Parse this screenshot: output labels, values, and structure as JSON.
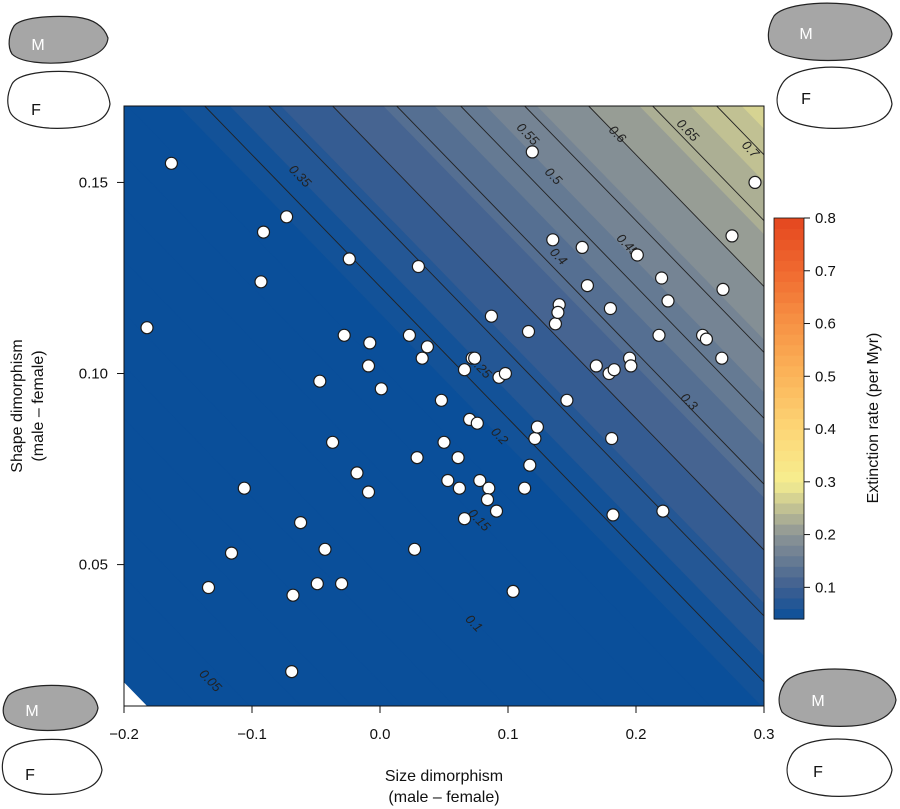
{
  "chart_data": {
    "type": "scatter",
    "title": "",
    "xlabel_line1": "Size dimorphism",
    "xlabel_line2": "(male – female)",
    "ylabel_line1": "Shape dimorphism",
    "ylabel_line2": "(male – female)",
    "xlim": [
      -0.2,
      0.3
    ],
    "ylim": [
      0.013,
      0.17
    ],
    "x_ticks": [
      {
        "value": -0.2,
        "label": "−0.2"
      },
      {
        "value": -0.1,
        "label": "−0.1"
      },
      {
        "value": 0.0,
        "label": "0.0"
      },
      {
        "value": 0.1,
        "label": "0.1"
      },
      {
        "value": 0.2,
        "label": "0.2"
      },
      {
        "value": 0.3,
        "label": "0.3"
      }
    ],
    "y_ticks": [
      {
        "value": 0.05,
        "label": "0.05"
      },
      {
        "value": 0.1,
        "label": "0.10"
      },
      {
        "value": 0.15,
        "label": "0.15"
      }
    ],
    "colorbar": {
      "label": "Extinction rate (per Myr)",
      "range": [
        0.04,
        0.8
      ],
      "ticks": [
        {
          "value": 0.1,
          "label": "0.1"
        },
        {
          "value": 0.2,
          "label": "0.2"
        },
        {
          "value": 0.3,
          "label": "0.3"
        },
        {
          "value": 0.4,
          "label": "0.4"
        },
        {
          "value": 0.5,
          "label": "0.5"
        },
        {
          "value": 0.6,
          "label": "0.6"
        },
        {
          "value": 0.7,
          "label": "0.7"
        },
        {
          "value": 0.8,
          "label": "0.8"
        }
      ],
      "stops": [
        {
          "value": 0.04,
          "color": "#0a4f9a"
        },
        {
          "value": 0.1,
          "color": "#3e5f90"
        },
        {
          "value": 0.2,
          "color": "#8c9496"
        },
        {
          "value": 0.3,
          "color": "#f6ee90"
        },
        {
          "value": 0.4,
          "color": "#fdd676"
        },
        {
          "value": 0.5,
          "color": "#fbb55a"
        },
        {
          "value": 0.6,
          "color": "#f79345"
        },
        {
          "value": 0.7,
          "color": "#f06a30"
        },
        {
          "value": 0.8,
          "color": "#e4461f"
        }
      ]
    },
    "contour_model": {
      "a": 0.5,
      "b": 1.45,
      "c": 0.128
    },
    "contour_levels": [
      0.05,
      0.075,
      0.1,
      0.125,
      0.15,
      0.175,
      0.2,
      0.225,
      0.25,
      0.275,
      0.3,
      0.325,
      0.35,
      0.375,
      0.4,
      0.45,
      0.5,
      0.55,
      0.6,
      0.65,
      0.7
    ],
    "contour_labels": [
      {
        "text": "0.05",
        "x": -0.133,
        "y": 0.0195
      },
      {
        "text": "0.1",
        "x": 0.073,
        "y": 0.0345
      },
      {
        "text": "0.15",
        "x": 0.077,
        "y": 0.0615
      },
      {
        "text": "0.2",
        "x": 0.093,
        "y": 0.0835
      },
      {
        "text": "0.25",
        "x": 0.078,
        "y": 0.1015
      },
      {
        "text": "0.3",
        "x": 0.241,
        "y": 0.0925
      },
      {
        "text": "0.35",
        "x": -0.063,
        "y": 0.1515
      },
      {
        "text": "0.4",
        "x": 0.139,
        "y": 0.1305
      },
      {
        "text": "0.45",
        "x": 0.193,
        "y": 0.1335
      },
      {
        "text": "0.5",
        "x": 0.135,
        "y": 0.1515
      },
      {
        "text": "0.55",
        "x": 0.115,
        "y": 0.1625
      },
      {
        "text": "0.6",
        "x": 0.185,
        "y": 0.1625
      },
      {
        "text": "0.65",
        "x": 0.24,
        "y": 0.1635
      },
      {
        "text": "0.7",
        "x": 0.289,
        "y": 0.1585
      }
    ],
    "series": [
      {
        "name": "Species",
        "x": [
          -0.163,
          -0.182,
          -0.091,
          -0.093,
          -0.073,
          -0.024,
          -0.028,
          -0.008,
          -0.009,
          -0.047,
          -0.037,
          -0.018,
          0.001,
          -0.009,
          -0.106,
          -0.116,
          -0.062,
          -0.043,
          -0.134,
          -0.049,
          -0.068,
          -0.03,
          -0.069,
          0.03,
          0.023,
          0.037,
          0.033,
          0.029,
          0.027,
          0.048,
          0.05,
          0.053,
          0.061,
          0.062,
          0.066,
          0.066,
          0.072,
          0.07,
          0.076,
          0.074,
          0.078,
          0.085,
          0.084,
          0.091,
          0.087,
          0.093,
          0.098,
          0.104,
          0.113,
          0.116,
          0.117,
          0.119,
          0.121,
          0.123,
          0.135,
          0.14,
          0.137,
          0.139,
          0.146,
          0.158,
          0.162,
          0.169,
          0.179,
          0.181,
          0.18,
          0.183,
          0.182,
          0.195,
          0.196,
          0.201,
          0.22,
          0.221,
          0.225,
          0.218,
          0.252,
          0.255,
          0.268,
          0.267,
          0.275,
          0.293
        ],
        "y": [
          0.155,
          0.112,
          0.137,
          0.124,
          0.141,
          0.13,
          0.11,
          0.108,
          0.102,
          0.098,
          0.082,
          0.074,
          0.096,
          0.069,
          0.07,
          0.053,
          0.061,
          0.054,
          0.044,
          0.045,
          0.042,
          0.045,
          0.022,
          0.128,
          0.11,
          0.107,
          0.104,
          0.078,
          0.054,
          0.093,
          0.082,
          0.072,
          0.078,
          0.07,
          0.062,
          0.101,
          0.104,
          0.088,
          0.087,
          0.104,
          0.072,
          0.07,
          0.067,
          0.064,
          0.115,
          0.099,
          0.1,
          0.043,
          0.07,
          0.111,
          0.076,
          0.158,
          0.083,
          0.086,
          0.135,
          0.118,
          0.113,
          0.116,
          0.093,
          0.133,
          0.123,
          0.102,
          0.1,
          0.083,
          0.117,
          0.101,
          0.063,
          0.104,
          0.102,
          0.131,
          0.125,
          0.064,
          0.119,
          0.11,
          0.11,
          0.109,
          0.122,
          0.104,
          0.136,
          0.15
        ]
      }
    ],
    "corner_shapes": {
      "top_left": {
        "male": "M",
        "female": "F"
      },
      "top_right": {
        "male": "M",
        "female": "F"
      },
      "bottom_left": {
        "male": "M",
        "female": "F"
      },
      "bottom_right": {
        "male": "M",
        "female": "F"
      }
    }
  },
  "colors": {
    "male_fill": "#a6a6a6",
    "female_fill": "#ffffff",
    "outline": "#222222",
    "contour": "#222222",
    "point_fill": "#ffffff",
    "point_stroke": "#1a1a1a"
  }
}
